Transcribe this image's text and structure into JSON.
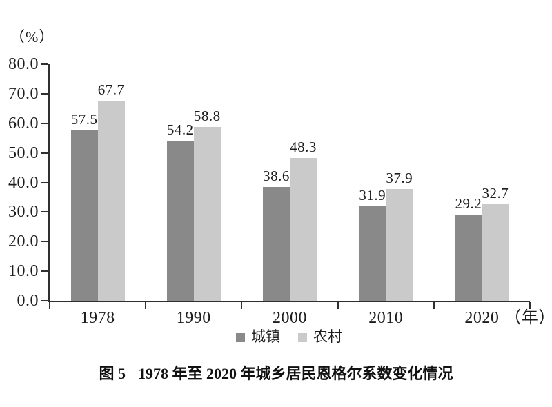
{
  "chart_data": {
    "type": "bar",
    "unit_label": "（%）",
    "x_axis_suffix": "（年）",
    "categories": [
      "1978",
      "1990",
      "2000",
      "2010",
      "2020"
    ],
    "series": [
      {
        "name": "城镇",
        "color": "#898989",
        "values": [
          57.5,
          54.2,
          38.6,
          31.9,
          29.2
        ]
      },
      {
        "name": "农村",
        "color": "#cacaca",
        "values": [
          67.7,
          58.8,
          48.3,
          37.9,
          32.7
        ]
      }
    ],
    "ylim": [
      0,
      80
    ],
    "ytick_step": 10,
    "ytick_labels": [
      "80.0",
      "70.0",
      "60.0",
      "50.0",
      "40.0",
      "30.0",
      "20.0",
      "10.0",
      "0.0"
    ],
    "value_label_decimals": 1,
    "grid": false,
    "legend_position": "bottom",
    "axis_color": "#2f2f2f",
    "text_color": "#1c1c1c"
  },
  "caption": {
    "label": "图 5",
    "title": "1978 年至 2020 年城乡居民恩格尔系数变化情况"
  }
}
